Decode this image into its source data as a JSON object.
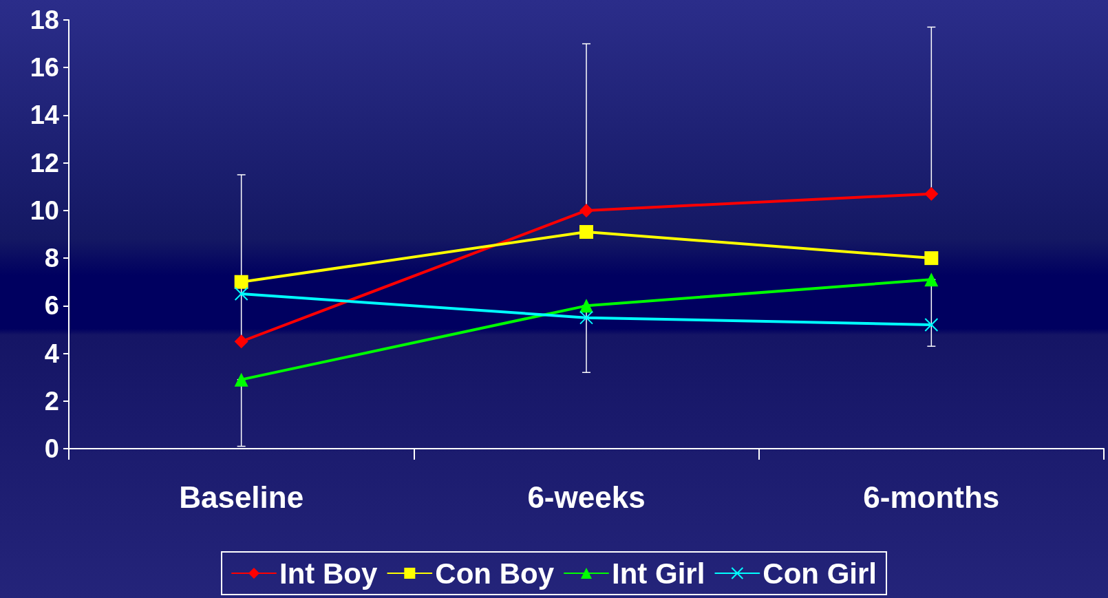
{
  "chart_data": {
    "type": "line",
    "categories": [
      "Baseline",
      "6-weeks",
      "6-months"
    ],
    "series": [
      {
        "name": "Int Boy",
        "color": "#ff0000",
        "marker": "diamond",
        "values": [
          4.5,
          10,
          10.7
        ],
        "errors": [
          [
            4.5,
            11.5
          ],
          [
            10,
            17
          ],
          [
            10.7,
            17.7
          ]
        ]
      },
      {
        "name": "Con Boy",
        "color": "#ffff00",
        "marker": "square",
        "values": [
          7,
          9.1,
          8
        ]
      },
      {
        "name": "Int Girl",
        "color": "#00ff00",
        "marker": "triangle",
        "values": [
          2.9,
          6,
          7.1
        ],
        "errors": [
          [
            0.1,
            2.9
          ],
          [
            3.2,
            6
          ],
          [
            4.3,
            7.1
          ]
        ]
      },
      {
        "name": "Con Girl",
        "color": "#00ffff",
        "marker": "cross",
        "values": [
          6.5,
          5.5,
          5.2
        ]
      }
    ],
    "ylim": [
      0,
      18
    ],
    "yticks": [
      0,
      2,
      4,
      6,
      8,
      10,
      12,
      14,
      16,
      18
    ],
    "grid": false,
    "legend": "bottom",
    "line_style": "solid"
  }
}
